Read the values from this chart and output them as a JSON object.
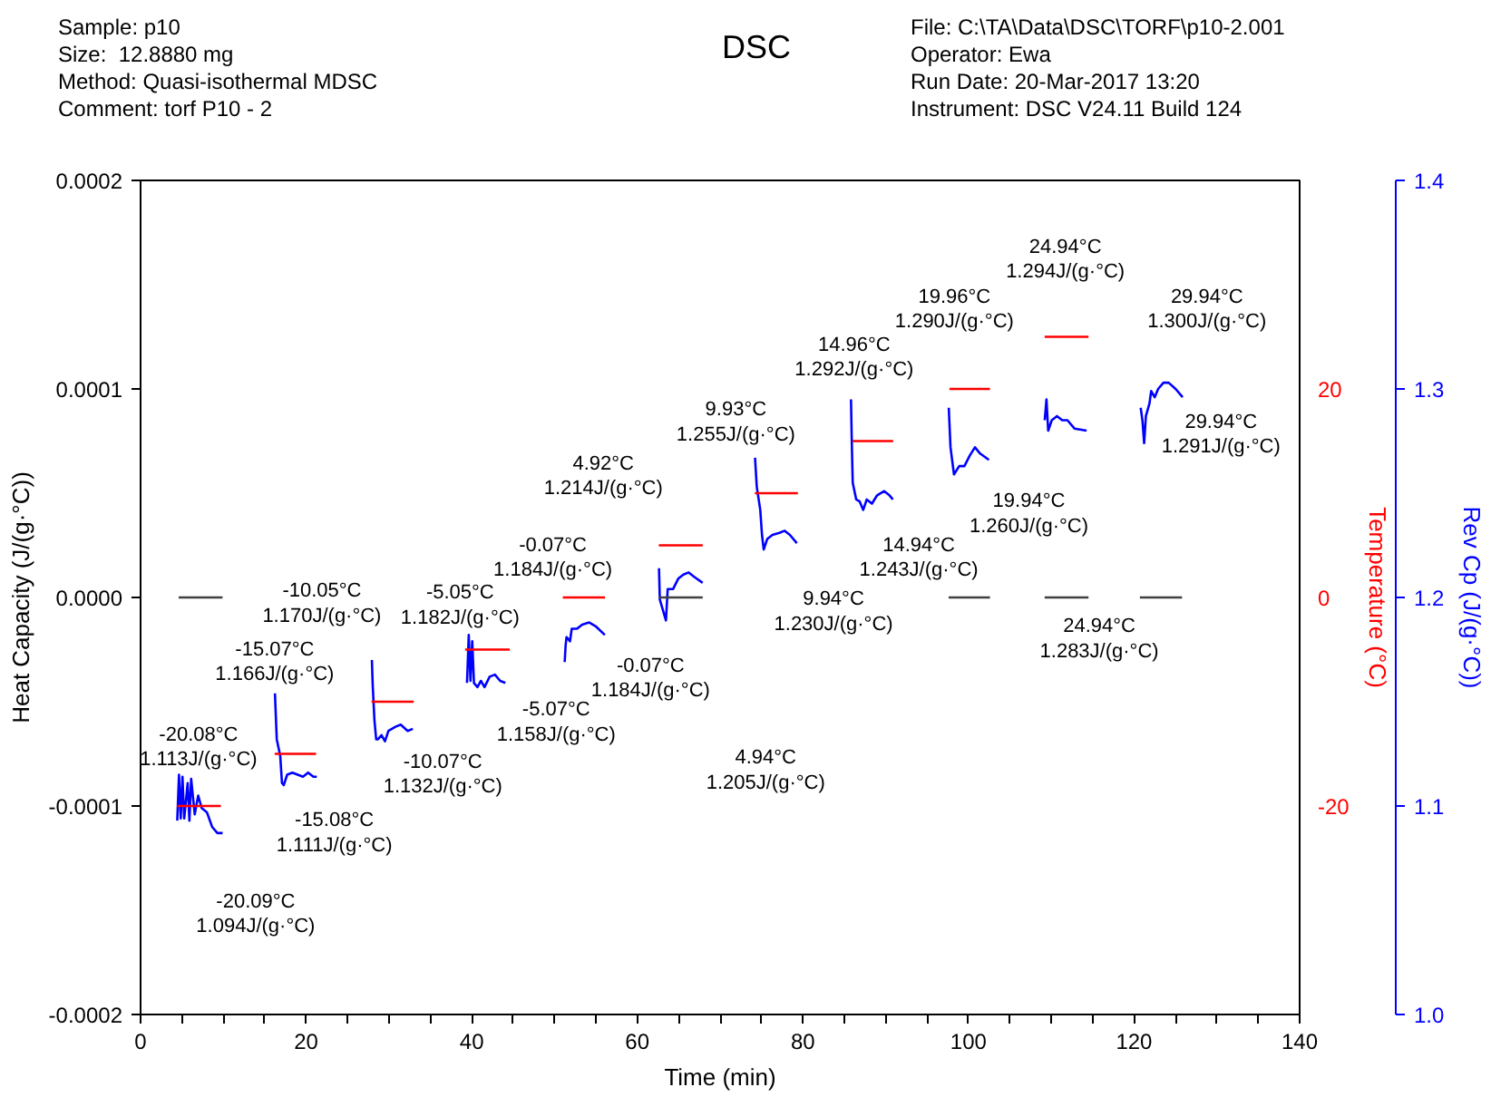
{
  "chart_data": {
    "type": "line",
    "title": "DSC",
    "xlabel": "Time (min)",
    "ylabel": "Heat Capacity (J/(g·°C))",
    "y2label": "Rev Cp (J/(g·°C))",
    "y3label": "Temperature (°C)",
    "xlim": [
      0,
      140
    ],
    "xticks": [
      0,
      {
        "value": 5,
        "label": null
      },
      {
        "value": 10,
        "label": null
      },
      {
        "value": 15,
        "label": null
      },
      20,
      {
        "value": 25,
        "label": null
      },
      {
        "value": 30,
        "label": null
      },
      {
        "value": 35,
        "label": null
      },
      40,
      {
        "value": 45,
        "label": null
      },
      {
        "value": 50,
        "label": null
      },
      {
        "value": 55,
        "label": null
      },
      60,
      {
        "value": 65,
        "label": null
      },
      {
        "value": 70,
        "label": null
      },
      {
        "value": 75,
        "label": null
      },
      80,
      {
        "value": 85,
        "label": null
      },
      {
        "value": 90,
        "label": null
      },
      {
        "value": 95,
        "label": null
      },
      100,
      {
        "value": 105,
        "label": null
      },
      {
        "value": 110,
        "label": null
      },
      {
        "value": 115,
        "label": null
      },
      120,
      {
        "value": 125,
        "label": null
      },
      {
        "value": 130,
        "label": null
      },
      {
        "value": 135,
        "label": null
      },
      140
    ],
    "ylim": [
      -0.0002,
      0.0002
    ],
    "yticks": [
      -0.0002,
      -0.0001,
      {
        "value": 0,
        "label": "0.0000"
      },
      0.0001,
      0.0002
    ],
    "y2lim": [
      1.0,
      1.4
    ],
    "y2ticks": [
      {
        "value": 1.0,
        "label": "1.0"
      },
      1.1,
      1.2,
      1.3,
      1.4
    ],
    "y3lim": [
      -40,
      40
    ],
    "y3ticks": [
      -20,
      0,
      20
    ],
    "series": [
      {
        "color": "#404040",
        "x": [
          4.6,
          9.9,
          36,
          62.6,
          67.9,
          86,
          97.6,
          102.6,
          106,
          109.2,
          114.5,
          118,
          120.7,
          125.8
        ],
        "values": [
          0,
          0,
          null,
          0,
          0,
          null,
          0,
          0,
          null,
          0,
          0,
          null,
          0,
          0
        ]
      },
      {
        "color": "#ff0000",
        "axis": "y3",
        "x": [
          4.4,
          9.7,
          13,
          16.2,
          21.2,
          24.5,
          27.9,
          33.0,
          36,
          39.2,
          44.6,
          48,
          51.0,
          56.1,
          59.5,
          62.6,
          67.9,
          71,
          74.2,
          79.4,
          82.5,
          86.0,
          90.9,
          94,
          97.7,
          102.6,
          106,
          109.2,
          114.5
        ],
        "values": [
          -20,
          -20,
          null,
          -15,
          -15,
          null,
          -10,
          -10,
          null,
          -5,
          -5,
          null,
          0,
          0,
          null,
          5,
          5,
          null,
          10,
          10,
          null,
          15,
          15,
          null,
          20,
          20,
          null,
          25,
          25
        ]
      },
      {
        "color": "#0000ff",
        "axis": "y2",
        "x": [
          4.43,
          4.64,
          4.85,
          5.06,
          5.27,
          5.69,
          5.9,
          6.11,
          6.54,
          6.96,
          7.38,
          8.01,
          8.64,
          9.28,
          9.91,
          13,
          16.23,
          16.45,
          16.87,
          17.08,
          17.29,
          17.71,
          18.34,
          18.98,
          19.61,
          20.24,
          20.87,
          21.29,
          24.5,
          27.94,
          28.04,
          28.25,
          28.46,
          28.68,
          29.1,
          29.52,
          29.94,
          30.79,
          31.42,
          32.26,
          32.89,
          36,
          39.43,
          39.64,
          39.85,
          40.06,
          40.27,
          40.69,
          41.11,
          41.54,
          42.17,
          42.8,
          43.43,
          44.06,
          48,
          51.23,
          51.34,
          51.45,
          51.87,
          52.08,
          52.71,
          53.34,
          54.19,
          55.03,
          56.08,
          59.5,
          62.62,
          62.72,
          63.46,
          63.67,
          64.31,
          64.94,
          65.57,
          66.2,
          66.83,
          67.89,
          71,
          74.22,
          74.43,
          74.85,
          75.06,
          75.27,
          75.69,
          76.32,
          77.17,
          77.8,
          78.43,
          79.27,
          82.5,
          85.81,
          85.92,
          86.02,
          86.44,
          86.86,
          87.29,
          87.71,
          88.34,
          88.97,
          89.82,
          90.45,
          90.87,
          94,
          97.62,
          97.83,
          98.25,
          98.88,
          99.51,
          100.15,
          100.78,
          101.41,
          102.47,
          106,
          109.21,
          109.42,
          109.63,
          110.06,
          110.69,
          111.32,
          111.95,
          112.8,
          114.27,
          118,
          120.8,
          121.01,
          121.22,
          121.43,
          121.86,
          122.07,
          122.49,
          122.91,
          123.55,
          124.18,
          125.02,
          125.87
        ],
        "values": [
          1.093,
          1.115,
          1.094,
          1.114,
          1.094,
          1.111,
          1.093,
          1.113,
          1.096,
          1.105,
          1.099,
          1.097,
          1.09,
          1.087,
          1.087,
          null,
          1.154,
          1.132,
          1.124,
          1.111,
          1.11,
          1.115,
          1.116,
          1.115,
          1.114,
          1.116,
          1.114,
          1.114,
          null,
          1.17,
          1.158,
          1.141,
          1.132,
          1.132,
          1.134,
          1.131,
          1.136,
          1.138,
          1.139,
          1.136,
          1.137,
          null,
          1.159,
          1.182,
          1.16,
          1.179,
          1.159,
          1.157,
          1.16,
          1.157,
          1.162,
          1.163,
          1.16,
          1.159,
          null,
          1.169,
          1.177,
          1.181,
          1.179,
          1.185,
          1.185,
          1.187,
          1.188,
          1.186,
          1.182,
          null,
          1.214,
          1.199,
          1.189,
          1.204,
          1.204,
          1.209,
          1.211,
          1.212,
          1.21,
          1.207,
          null,
          1.267,
          1.253,
          1.242,
          1.23,
          1.223,
          1.228,
          1.23,
          1.231,
          1.232,
          1.23,
          1.226,
          null,
          1.295,
          1.272,
          1.255,
          1.247,
          1.246,
          1.242,
          1.247,
          1.245,
          1.249,
          1.251,
          1.249,
          1.247,
          null,
          1.291,
          1.272,
          1.259,
          1.263,
          1.263,
          1.268,
          1.272,
          1.269,
          1.266,
          null,
          1.285,
          1.295,
          1.28,
          1.285,
          1.287,
          1.285,
          1.285,
          1.281,
          1.28,
          null,
          1.291,
          1.285,
          1.274,
          1.287,
          1.293,
          1.299,
          1.296,
          1.3,
          1.303,
          1.303,
          1.3,
          1.296
        ]
      }
    ],
    "annotations": [
      "Sample: p10",
      "Size:  12.8880 mg",
      "Method: Quasi-isothermal MDSC",
      "Comment: torf P10 - 2",
      "File: C:\\TA\\Data\\DSC\\TORF\\p10-2.001",
      "Operator: Ewa",
      "Run Date: 20-Mar-2017 13:20",
      "Instrument: DSC V24.11 Build 124",
      "-20.08°C\n1.113J/(g·°C)",
      "-20.09°C\n1.094J/(g·°C)",
      "-15.07°C\n1.166J/(g·°C)",
      "-15.08°C\n1.111J/(g·°C)",
      "-10.05°C\n1.170J/(g·°C)",
      "-10.07°C\n1.132J/(g·°C)",
      "-5.05°C\n1.182J/(g·°C)",
      "-5.07°C\n1.158J/(g·°C)",
      "-0.07°C\n1.184J/(g·°C)",
      "-0.07°C\n1.184J/(g·°C)",
      "4.92°C\n1.214J/(g·°C)",
      "4.94°C\n1.205J/(g·°C)",
      "9.93°C\n1.255J/(g·°C)",
      "9.94°C\n1.230J/(g·°C)",
      "14.96°C\n1.292J/(g·°C)",
      "14.94°C\n1.243J/(g·°C)",
      "19.96°C\n1.290J/(g·°C)",
      "19.94°C\n1.260J/(g·°C)",
      "24.94°C\n1.294J/(g·°C)",
      "24.94°C\n1.283J/(g·°C)",
      "29.94°C\n1.300J/(g·°C)",
      "29.94°C\n1.291J/(g·°C)"
    ]
  }
}
